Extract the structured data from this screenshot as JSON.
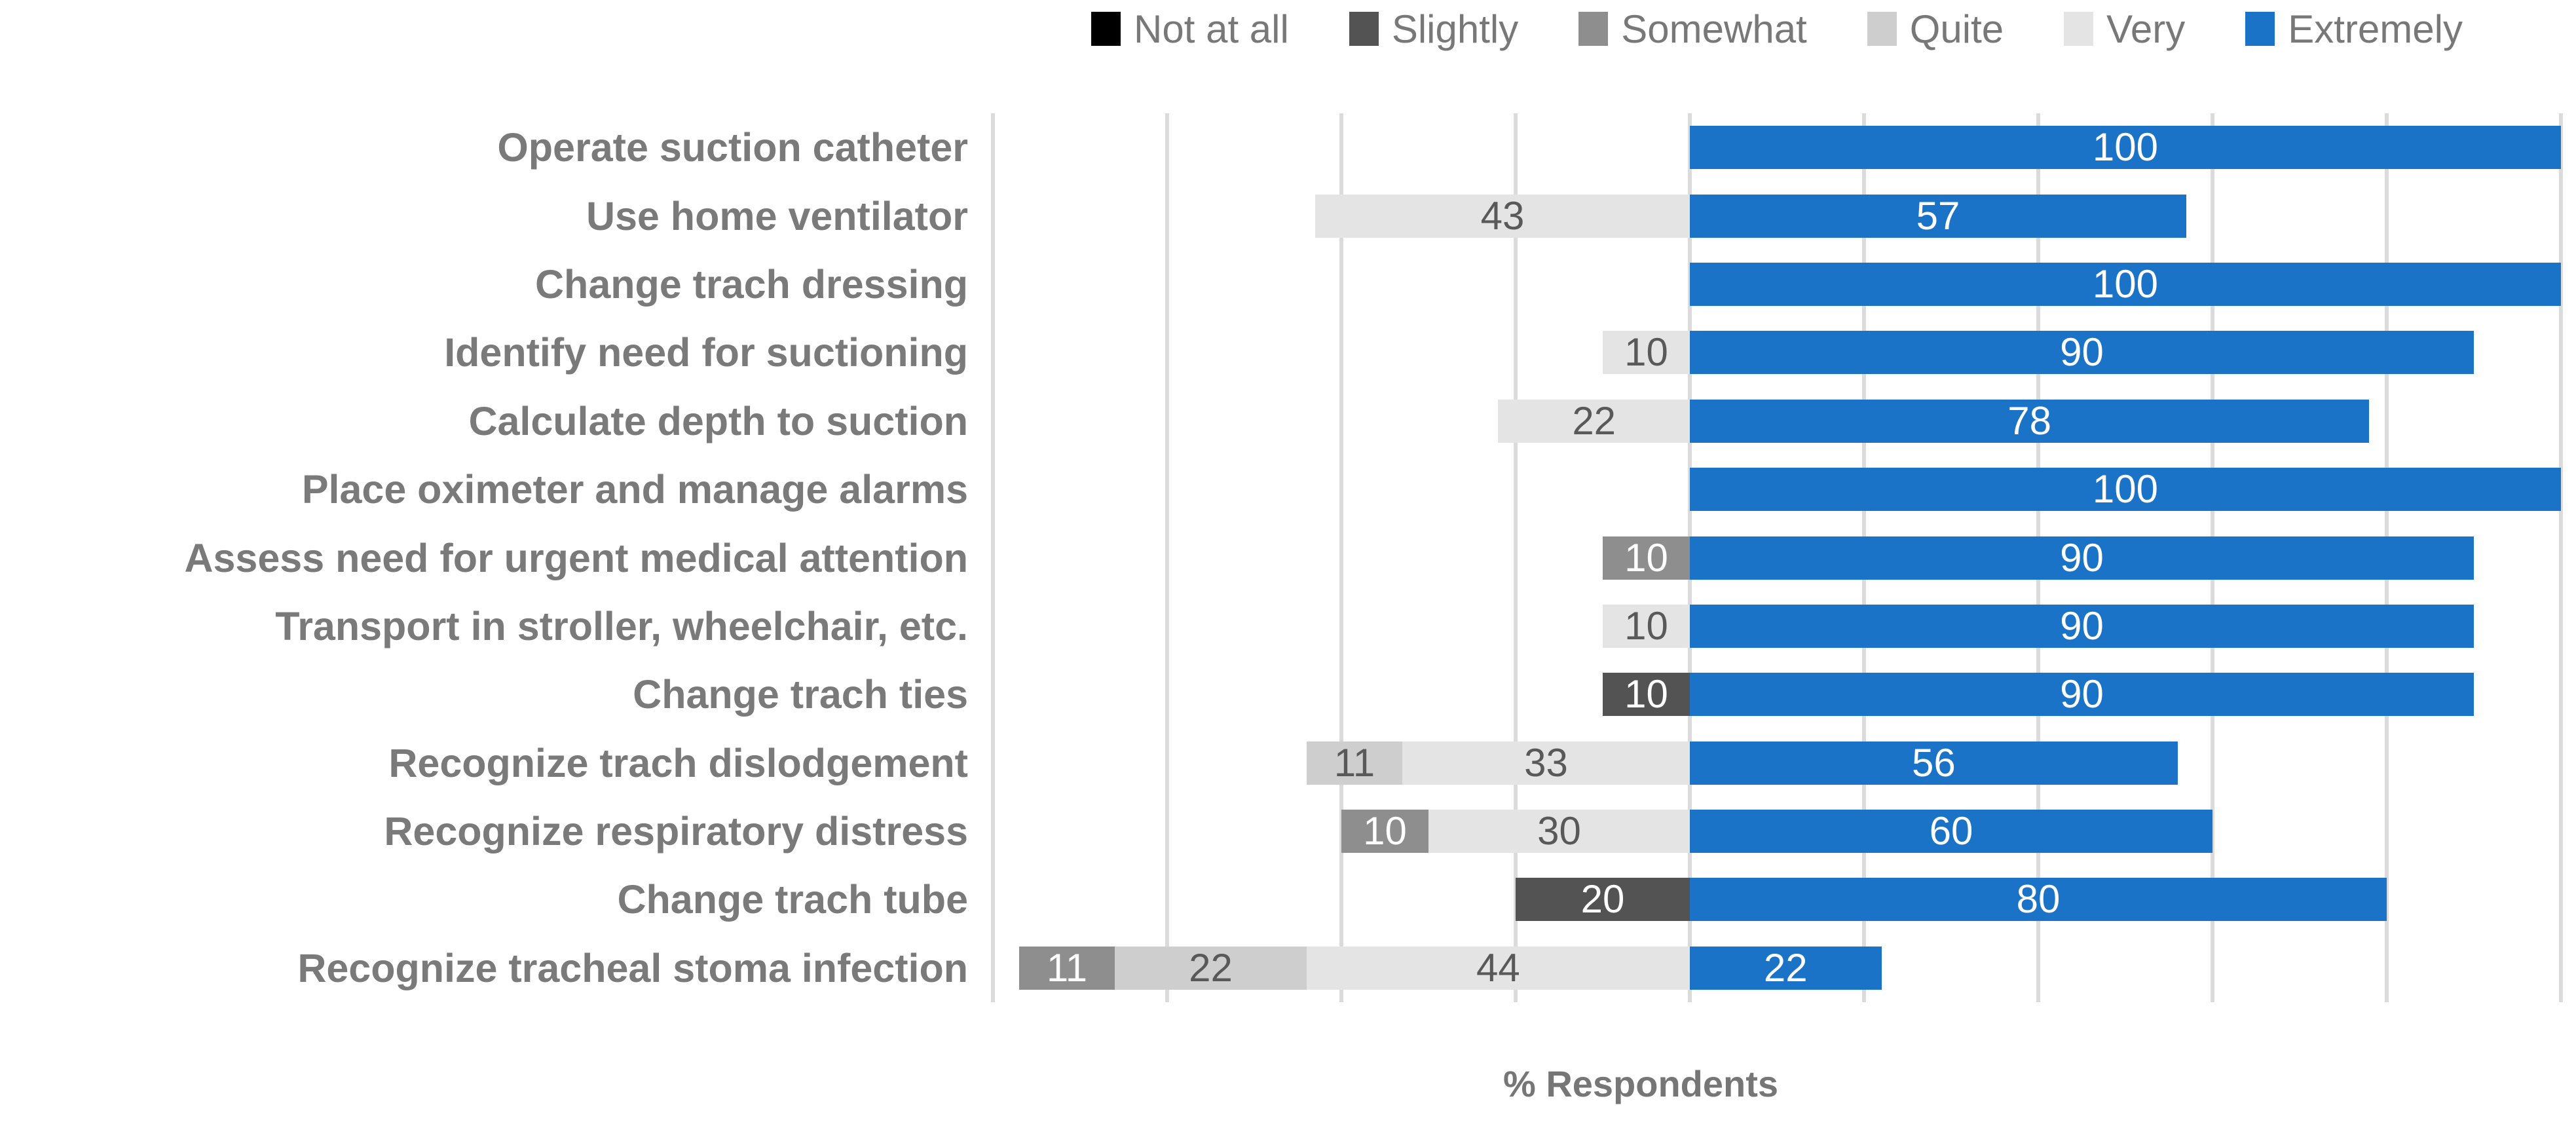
{
  "colors": {
    "not_at_all": "#000000",
    "slightly": "#535353",
    "somewhat": "#8e8e8e",
    "quite": "#cecece",
    "very": "#e4e4e4",
    "extremely": "#1b73c8",
    "gridline": "#dbdbdb",
    "category_text": "#7a7a7a",
    "legend_text": "#787878",
    "value_text_light": "#ffffff",
    "value_text_dark": "#595959"
  },
  "chart_data": {
    "type": "bar",
    "orientation": "horizontal-stacked-diverging",
    "xlabel": "% Respondents",
    "xlim": [
      -80,
      100
    ],
    "gridline_step": 20,
    "anchor": 0,
    "grid": true,
    "legend_position": "top",
    "legend": [
      "Not at all",
      "Slightly",
      "Somewhat",
      "Quite",
      "Very",
      "Extremely"
    ],
    "categories": [
      "Operate suction catheter",
      "Use home ventilator",
      "Change trach dressing",
      "Identify need for suctioning",
      "Calculate depth to suction",
      "Place  oximeter and manage alarms",
      "Assess need for urgent medical attention",
      "Transport in stroller, wheelchair, etc.",
      "Change trach ties",
      "Recognize trach dislodgement",
      "Recognize respiratory distress",
      "Change trach tube",
      "Recognize tracheal stoma infection"
    ],
    "series": [
      {
        "name": "Not at all",
        "key": "not_at_all",
        "values": [
          0,
          0,
          0,
          0,
          0,
          0,
          0,
          0,
          0,
          0,
          0,
          0,
          0
        ]
      },
      {
        "name": "Slightly",
        "key": "slightly",
        "values": [
          0,
          0,
          0,
          0,
          0,
          0,
          0,
          0,
          10,
          0,
          0,
          20,
          0
        ]
      },
      {
        "name": "Somewhat",
        "key": "somewhat",
        "values": [
          0,
          0,
          0,
          0,
          0,
          0,
          10,
          0,
          0,
          0,
          10,
          0,
          11
        ]
      },
      {
        "name": "Quite",
        "key": "quite",
        "values": [
          0,
          0,
          0,
          0,
          0,
          0,
          0,
          0,
          0,
          11,
          0,
          0,
          22
        ]
      },
      {
        "name": "Very",
        "key": "very",
        "values": [
          0,
          43,
          0,
          10,
          22,
          0,
          0,
          10,
          0,
          33,
          30,
          0,
          44
        ]
      },
      {
        "name": "Extremely",
        "key": "extremely",
        "values": [
          100,
          57,
          100,
          90,
          78,
          100,
          90,
          90,
          90,
          56,
          60,
          80,
          22
        ]
      }
    ]
  }
}
